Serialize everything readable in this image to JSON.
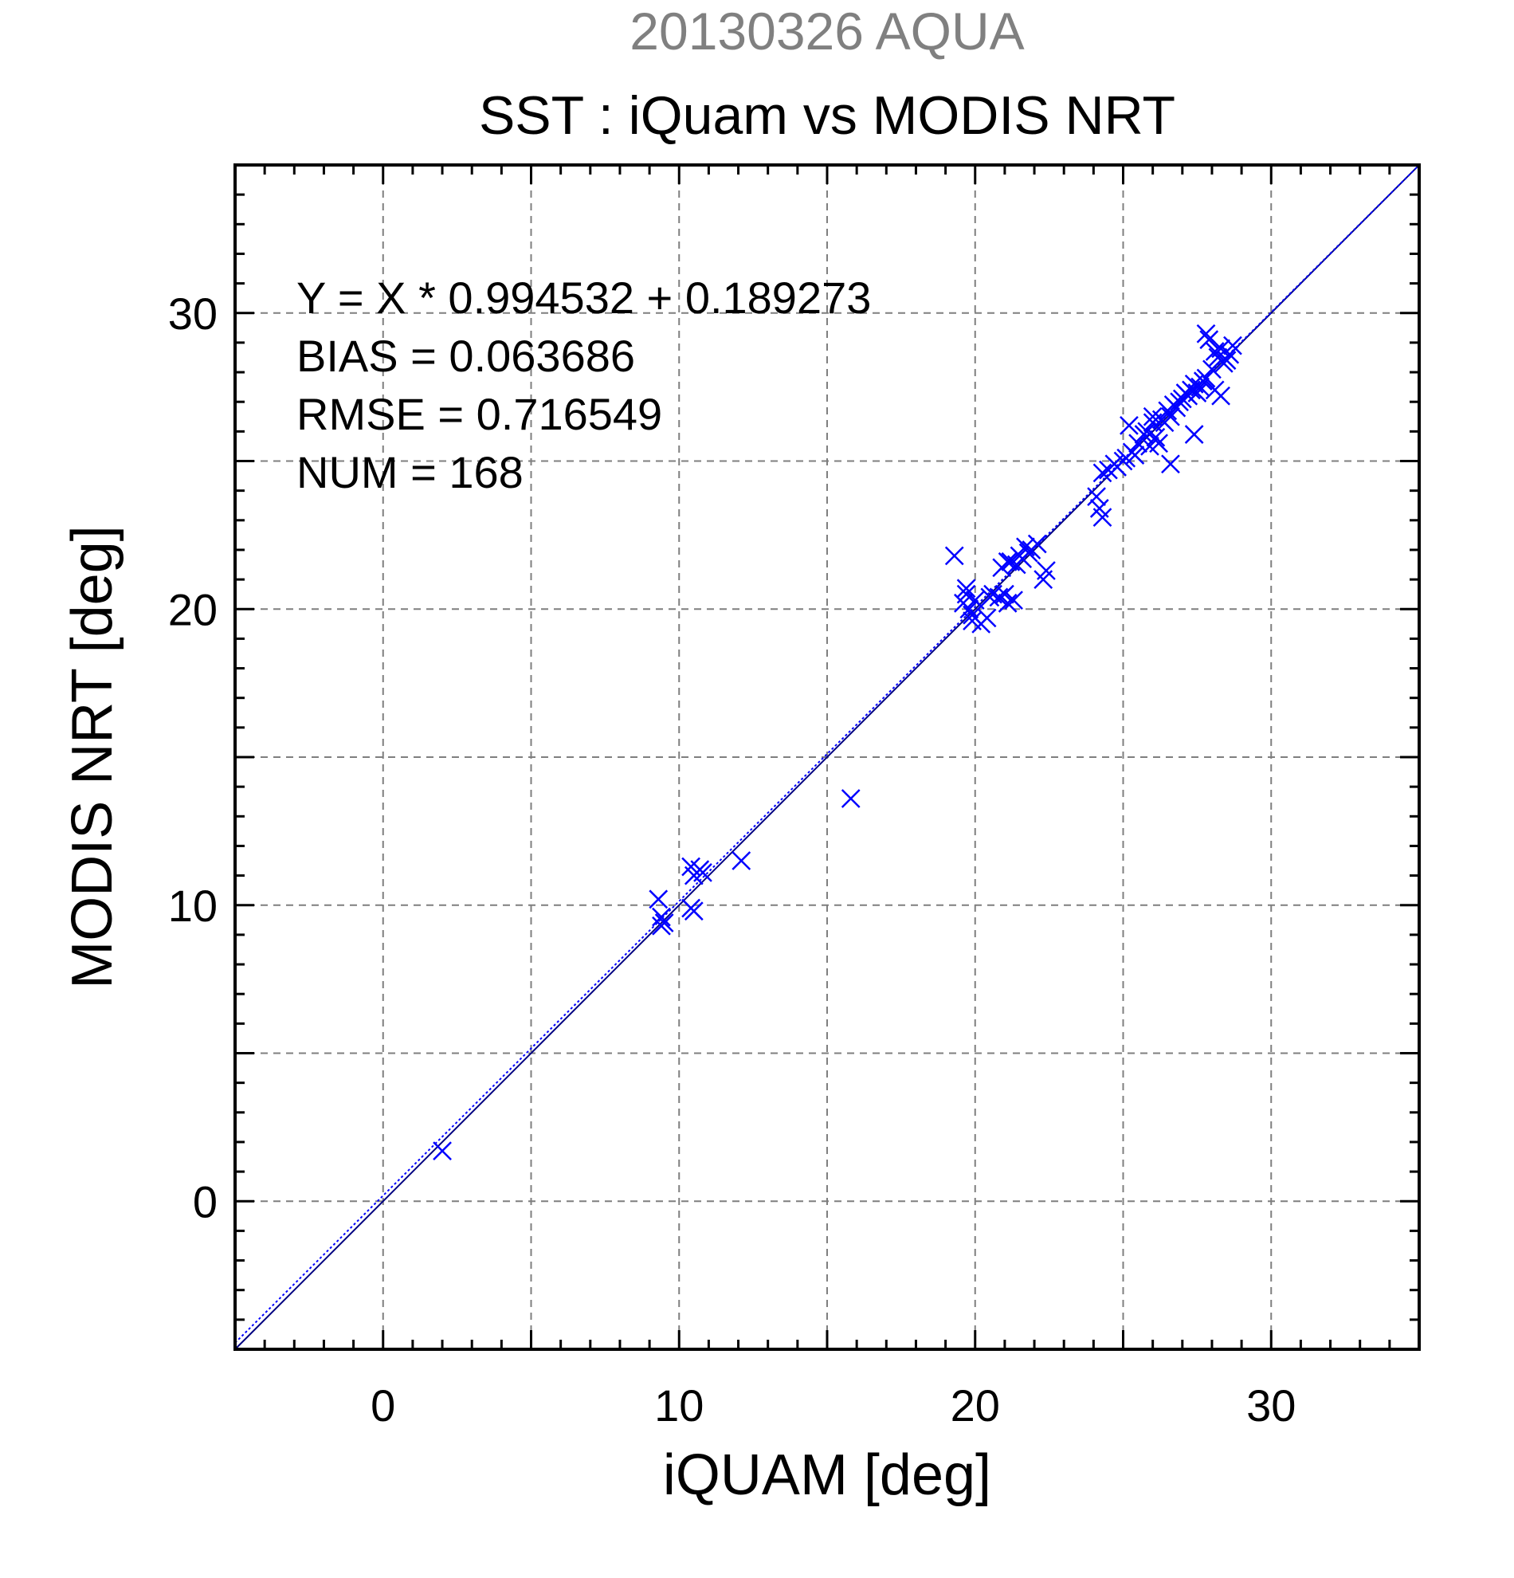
{
  "chart_data": {
    "type": "scatter",
    "title": "20130326 AQUA",
    "subtitle": "SST : iQuam vs MODIS NRT",
    "xlabel": "iQUAM [deg]",
    "ylabel": "MODIS NRT [deg]",
    "xlim": [
      -5,
      35
    ],
    "ylim": [
      -5,
      35
    ],
    "xticks": [
      0,
      10,
      20,
      30
    ],
    "yticks": [
      0,
      10,
      20,
      30
    ],
    "grid_lines": [
      0,
      5,
      10,
      15,
      20,
      25,
      30
    ],
    "minor_tick_step": 1,
    "grid": true,
    "marker": "x",
    "colors": {
      "points": "#0000ff",
      "fit_line": "#0000ff",
      "one_to_one_line": "#000080",
      "title": "#808080",
      "text": "#000000",
      "grid": "#7f7f7f"
    },
    "fit": {
      "slope": 0.994532,
      "intercept": 0.189273
    },
    "annotations": [
      "Y = X * 0.994532 + 0.189273",
      "BIAS = 0.063686",
      "RMSE = 0.716549",
      "NUM = 168"
    ],
    "x": [
      2.0,
      9.3,
      9.4,
      9.5,
      9.4,
      10.4,
      10.5,
      10.7,
      10.8,
      10.4,
      10.5,
      12.1,
      15.8,
      19.3,
      19.6,
      19.7,
      19.8,
      19.9,
      19.7,
      20.0,
      19.9,
      20.2,
      20.4,
      20.5,
      20.6,
      20.8,
      20.9,
      21.0,
      21.1,
      21.1,
      21.2,
      21.3,
      21.4,
      21.5,
      21.6,
      21.7,
      21.8,
      21.9,
      22.1,
      22.3,
      22.4,
      24.1,
      24.2,
      24.3,
      24.3,
      24.5,
      24.7,
      24.8,
      25.0,
      25.1,
      25.2,
      25.3,
      25.4,
      25.5,
      25.7,
      25.8,
      25.9,
      26.0,
      26.0,
      26.1,
      26.2,
      26.3,
      26.4,
      26.5,
      26.6,
      26.6,
      26.7,
      26.8,
      26.9,
      27.0,
      27.1,
      27.2,
      27.3,
      27.4,
      27.5,
      27.6,
      27.7,
      27.8,
      27.9,
      28.0,
      28.1,
      28.1,
      28.2,
      28.3,
      28.3,
      28.4,
      28.5,
      28.6,
      28.7,
      27.4,
      27.8
    ],
    "y": [
      1.7,
      10.2,
      9.3,
      9.4,
      9.6,
      9.9,
      9.8,
      11.2,
      11.1,
      11.3,
      11.0,
      11.5,
      13.6,
      21.8,
      20.2,
      20.5,
      20.0,
      19.8,
      20.7,
      20.3,
      19.6,
      19.5,
      19.7,
      20.4,
      20.5,
      20.4,
      21.4,
      20.5,
      21.6,
      20.2,
      21.6,
      20.3,
      21.5,
      21.8,
      21.7,
      22.1,
      21.9,
      22.0,
      22.2,
      21.0,
      21.3,
      23.8,
      23.4,
      23.1,
      24.6,
      24.7,
      24.9,
      24.8,
      25.0,
      25.1,
      26.2,
      25.3,
      25.2,
      25.6,
      25.9,
      26.0,
      25.5,
      26.3,
      26.5,
      25.8,
      25.6,
      26.4,
      26.3,
      26.7,
      26.5,
      24.9,
      26.9,
      26.8,
      27.0,
      27.1,
      27.3,
      27.2,
      27.4,
      27.6,
      27.3,
      27.5,
      27.7,
      27.8,
      29.1,
      28.1,
      27.4,
      28.7,
      28.5,
      28.8,
      27.2,
      28.3,
      28.4,
      28.6,
      28.9,
      25.9,
      29.3
    ]
  }
}
